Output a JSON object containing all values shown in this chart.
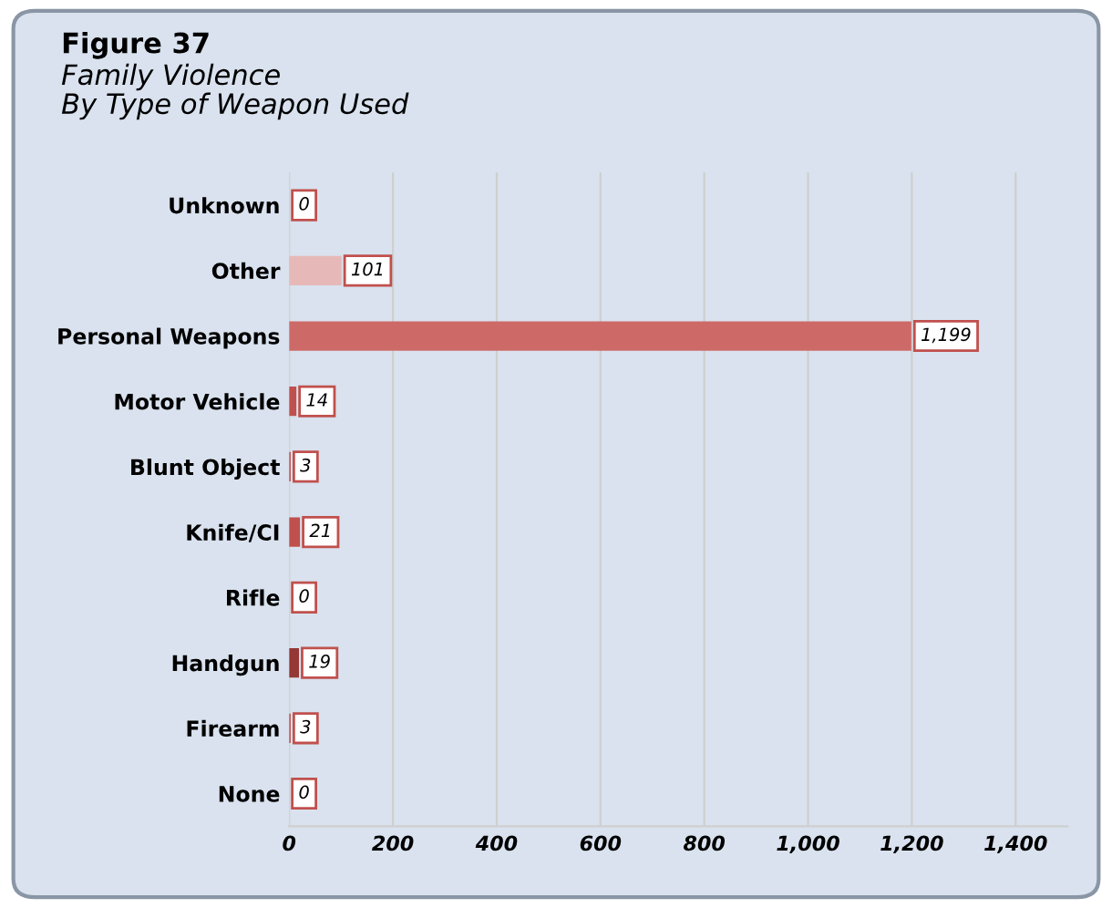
{
  "chart_data": {
    "type": "bar",
    "orientation": "horizontal",
    "title": "Figure 37",
    "subtitle": "Family Violence\nBy Type of Weapon Used",
    "categories": [
      "Unknown",
      "Other",
      "Personal Weapons",
      "Motor Vehicle",
      "Blunt Object",
      "Knife/CI",
      "Rifle",
      "Handgun",
      "Firearm",
      "None"
    ],
    "values": [
      0,
      101,
      1199,
      14,
      3,
      21,
      0,
      19,
      3,
      0
    ],
    "colors": [
      "#c0504d",
      "#e6b9b8",
      "#cd6a68",
      "#c0504d",
      "#c0504d",
      "#c0504d",
      "#c0504d",
      "#953735",
      "#c0504d",
      "#c0504d"
    ],
    "value_labels": [
      "0",
      "101",
      "1,199",
      "14",
      "3",
      "21",
      "0",
      "19",
      "3",
      "0"
    ],
    "xlim": [
      0,
      1500
    ],
    "xticks": [
      0,
      200,
      400,
      600,
      800,
      {
        "value": 1000,
        "label": "1,000"
      },
      {
        "value": 1200,
        "label": "1,200"
      },
      {
        "value": 1400,
        "label": "1,400"
      }
    ],
    "grid": "x",
    "legend": false
  }
}
